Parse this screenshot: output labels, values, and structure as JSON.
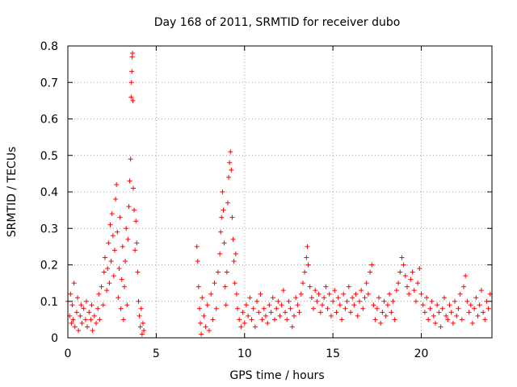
{
  "chart_data": {
    "type": "scatter",
    "title": "Day 168 of 2011, SRMTID for receiver dubo",
    "xlabel": "GPS time / hours",
    "ylabel": "SRMTID / TECUs",
    "xlim": [
      0,
      24
    ],
    "ylim": [
      0,
      0.8
    ],
    "xticks": [
      0,
      5,
      10,
      15,
      20
    ],
    "xtick_labels": [
      "0",
      "5",
      "10",
      "15",
      "20"
    ],
    "yticks": [
      0,
      0.1,
      0.2,
      0.3,
      0.4,
      0.5,
      0.6,
      0.7,
      0.8
    ],
    "ytick_labels": [
      "0",
      "0.1",
      "0.2",
      "0.3",
      "0.4",
      "0.5",
      "0.6",
      "0.7",
      "0.8"
    ],
    "grid": true,
    "marker": "+",
    "color": "#ff0000",
    "series": [
      {
        "name": "SRMTID",
        "points": [
          [
            0.0,
            0.1
          ],
          [
            0.1,
            0.06
          ],
          [
            0.15,
            0.12
          ],
          [
            0.2,
            0.04
          ],
          [
            0.25,
            0.09
          ],
          [
            0.3,
            0.05
          ],
          [
            0.35,
            0.15
          ],
          [
            0.4,
            0.03
          ],
          [
            0.5,
            0.07
          ],
          [
            0.55,
            0.11
          ],
          [
            0.6,
            0.02
          ],
          [
            0.7,
            0.06
          ],
          [
            0.75,
            0.09
          ],
          [
            0.8,
            0.04
          ],
          [
            0.9,
            0.08
          ],
          [
            1.0,
            0.05
          ],
          [
            1.05,
            0.1
          ],
          [
            1.1,
            0.03
          ],
          [
            1.2,
            0.07
          ],
          [
            1.3,
            0.05
          ],
          [
            1.35,
            0.09
          ],
          [
            1.4,
            0.02
          ],
          [
            1.5,
            0.06
          ],
          [
            1.6,
            0.04
          ],
          [
            1.7,
            0.08
          ],
          [
            1.75,
            0.12
          ],
          [
            1.8,
            0.05
          ],
          [
            1.9,
            0.14
          ],
          [
            2.0,
            0.09
          ],
          [
            2.05,
            0.18
          ],
          [
            2.1,
            0.22
          ],
          [
            2.2,
            0.13
          ],
          [
            2.25,
            0.19
          ],
          [
            2.3,
            0.26
          ],
          [
            2.35,
            0.15
          ],
          [
            2.4,
            0.31
          ],
          [
            2.45,
            0.21
          ],
          [
            2.5,
            0.34
          ],
          [
            2.55,
            0.28
          ],
          [
            2.6,
            0.17
          ],
          [
            2.65,
            0.24
          ],
          [
            2.7,
            0.38
          ],
          [
            2.75,
            0.42
          ],
          [
            2.8,
            0.29
          ],
          [
            2.85,
            0.11
          ],
          [
            2.9,
            0.19
          ],
          [
            2.95,
            0.33
          ],
          [
            3.0,
            0.08
          ],
          [
            3.05,
            0.16
          ],
          [
            3.1,
            0.25
          ],
          [
            3.15,
            0.05
          ],
          [
            3.2,
            0.14
          ],
          [
            3.25,
            0.21
          ],
          [
            3.3,
            0.3
          ],
          [
            3.35,
            0.09
          ],
          [
            3.4,
            0.27
          ],
          [
            3.45,
            0.36
          ],
          [
            3.5,
            0.43
          ],
          [
            3.55,
            0.49
          ],
          [
            3.58,
            0.66
          ],
          [
            3.6,
            0.7
          ],
          [
            3.62,
            0.73
          ],
          [
            3.64,
            0.77
          ],
          [
            3.66,
            0.78
          ],
          [
            3.68,
            0.65
          ],
          [
            3.7,
            0.41
          ],
          [
            3.75,
            0.35
          ],
          [
            3.8,
            0.24
          ],
          [
            3.85,
            0.32
          ],
          [
            3.9,
            0.26
          ],
          [
            3.95,
            0.18
          ],
          [
            4.0,
            0.1
          ],
          [
            4.05,
            0.06
          ],
          [
            4.1,
            0.03
          ],
          [
            4.15,
            0.08
          ],
          [
            4.2,
            0.01
          ],
          [
            4.25,
            0.04
          ],
          [
            4.3,
            0.02
          ],
          [
            7.3,
            0.25
          ],
          [
            7.35,
            0.21
          ],
          [
            7.4,
            0.14
          ],
          [
            7.45,
            0.08
          ],
          [
            7.5,
            0.04
          ],
          [
            7.55,
            0.01
          ],
          [
            7.6,
            0.11
          ],
          [
            7.7,
            0.06
          ],
          [
            7.8,
            0.03
          ],
          [
            7.9,
            0.09
          ],
          [
            8.0,
            0.02
          ],
          [
            8.1,
            0.12
          ],
          [
            8.2,
            0.05
          ],
          [
            8.3,
            0.15
          ],
          [
            8.4,
            0.08
          ],
          [
            8.5,
            0.18
          ],
          [
            8.6,
            0.23
          ],
          [
            8.65,
            0.29
          ],
          [
            8.7,
            0.33
          ],
          [
            8.75,
            0.4
          ],
          [
            8.8,
            0.35
          ],
          [
            8.85,
            0.26
          ],
          [
            8.9,
            0.14
          ],
          [
            8.95,
            0.09
          ],
          [
            9.0,
            0.18
          ],
          [
            9.05,
            0.37
          ],
          [
            9.1,
            0.44
          ],
          [
            9.15,
            0.48
          ],
          [
            9.2,
            0.51
          ],
          [
            9.25,
            0.46
          ],
          [
            9.3,
            0.33
          ],
          [
            9.35,
            0.27
          ],
          [
            9.4,
            0.21
          ],
          [
            9.45,
            0.15
          ],
          [
            9.5,
            0.23
          ],
          [
            9.55,
            0.12
          ],
          [
            9.6,
            0.08
          ],
          [
            9.7,
            0.05
          ],
          [
            9.8,
            0.03
          ],
          [
            9.9,
            0.07
          ],
          [
            10.0,
            0.04
          ],
          [
            10.1,
            0.09
          ],
          [
            10.2,
            0.06
          ],
          [
            10.3,
            0.11
          ],
          [
            10.4,
            0.05
          ],
          [
            10.5,
            0.08
          ],
          [
            10.6,
            0.03
          ],
          [
            10.7,
            0.1
          ],
          [
            10.8,
            0.07
          ],
          [
            10.9,
            0.12
          ],
          [
            11.0,
            0.05
          ],
          [
            11.1,
            0.08
          ],
          [
            11.2,
            0.06
          ],
          [
            11.3,
            0.04
          ],
          [
            11.4,
            0.09
          ],
          [
            11.5,
            0.07
          ],
          [
            11.6,
            0.11
          ],
          [
            11.7,
            0.05
          ],
          [
            11.8,
            0.08
          ],
          [
            11.9,
            0.1
          ],
          [
            12.0,
            0.06
          ],
          [
            12.1,
            0.09
          ],
          [
            12.2,
            0.13
          ],
          [
            12.3,
            0.07
          ],
          [
            12.4,
            0.05
          ],
          [
            12.5,
            0.1
          ],
          [
            12.6,
            0.08
          ],
          [
            12.7,
            0.03
          ],
          [
            12.8,
            0.06
          ],
          [
            12.9,
            0.11
          ],
          [
            13.0,
            0.09
          ],
          [
            13.1,
            0.07
          ],
          [
            13.2,
            0.12
          ],
          [
            13.3,
            0.15
          ],
          [
            13.4,
            0.18
          ],
          [
            13.5,
            0.22
          ],
          [
            13.55,
            0.25
          ],
          [
            13.6,
            0.2
          ],
          [
            13.7,
            0.14
          ],
          [
            13.8,
            0.11
          ],
          [
            13.9,
            0.08
          ],
          [
            14.0,
            0.13
          ],
          [
            14.1,
            0.1
          ],
          [
            14.2,
            0.12
          ],
          [
            14.3,
            0.07
          ],
          [
            14.4,
            0.09
          ],
          [
            14.5,
            0.11
          ],
          [
            14.6,
            0.14
          ],
          [
            14.7,
            0.08
          ],
          [
            14.8,
            0.12
          ],
          [
            14.9,
            0.06
          ],
          [
            15.0,
            0.1
          ],
          [
            15.1,
            0.13
          ],
          [
            15.2,
            0.07
          ],
          [
            15.3,
            0.11
          ],
          [
            15.4,
            0.09
          ],
          [
            15.5,
            0.05
          ],
          [
            15.6,
            0.12
          ],
          [
            15.7,
            0.08
          ],
          [
            15.8,
            0.1
          ],
          [
            15.9,
            0.14
          ],
          [
            16.0,
            0.07
          ],
          [
            16.1,
            0.11
          ],
          [
            16.2,
            0.09
          ],
          [
            16.3,
            0.12
          ],
          [
            16.4,
            0.06
          ],
          [
            16.5,
            0.1
          ],
          [
            16.6,
            0.13
          ],
          [
            16.7,
            0.08
          ],
          [
            16.8,
            0.11
          ],
          [
            16.9,
            0.15
          ],
          [
            17.0,
            0.12
          ],
          [
            17.1,
            0.18
          ],
          [
            17.2,
            0.2
          ],
          [
            17.3,
            0.09
          ],
          [
            17.4,
            0.05
          ],
          [
            17.5,
            0.08
          ],
          [
            17.6,
            0.11
          ],
          [
            17.7,
            0.04
          ],
          [
            17.8,
            0.07
          ],
          [
            17.9,
            0.1
          ],
          [
            18.0,
            0.06
          ],
          [
            18.1,
            0.09
          ],
          [
            18.2,
            0.12
          ],
          [
            18.3,
            0.07
          ],
          [
            18.4,
            0.1
          ],
          [
            18.5,
            0.05
          ],
          [
            18.6,
            0.13
          ],
          [
            18.7,
            0.15
          ],
          [
            18.8,
            0.18
          ],
          [
            18.9,
            0.22
          ],
          [
            19.0,
            0.2
          ],
          [
            19.1,
            0.17
          ],
          [
            19.2,
            0.14
          ],
          [
            19.3,
            0.12
          ],
          [
            19.4,
            0.16
          ],
          [
            19.5,
            0.18
          ],
          [
            19.6,
            0.13
          ],
          [
            19.7,
            0.1
          ],
          [
            19.8,
            0.15
          ],
          [
            19.9,
            0.19
          ],
          [
            20.0,
            0.12
          ],
          [
            20.1,
            0.09
          ],
          [
            20.2,
            0.07
          ],
          [
            20.3,
            0.11
          ],
          [
            20.4,
            0.05
          ],
          [
            20.5,
            0.08
          ],
          [
            20.6,
            0.1
          ],
          [
            20.7,
            0.06
          ],
          [
            20.8,
            0.04
          ],
          [
            20.9,
            0.09
          ],
          [
            21.0,
            0.07
          ],
          [
            21.1,
            0.03
          ],
          [
            21.2,
            0.08
          ],
          [
            21.3,
            0.11
          ],
          [
            21.4,
            0.06
          ],
          [
            21.5,
            0.05
          ],
          [
            21.6,
            0.09
          ],
          [
            21.7,
            0.07
          ],
          [
            21.8,
            0.04
          ],
          [
            21.9,
            0.1
          ],
          [
            22.0,
            0.06
          ],
          [
            22.1,
            0.08
          ],
          [
            22.2,
            0.12
          ],
          [
            22.3,
            0.05
          ],
          [
            22.4,
            0.14
          ],
          [
            22.5,
            0.17
          ],
          [
            22.6,
            0.1
          ],
          [
            22.7,
            0.07
          ],
          [
            22.8,
            0.09
          ],
          [
            22.9,
            0.04
          ],
          [
            23.0,
            0.08
          ],
          [
            23.1,
            0.11
          ],
          [
            23.2,
            0.06
          ],
          [
            23.3,
            0.09
          ],
          [
            23.4,
            0.13
          ],
          [
            23.5,
            0.07
          ],
          [
            23.6,
            0.05
          ],
          [
            23.7,
            0.1
          ],
          [
            23.8,
            0.08
          ],
          [
            23.9,
            0.12
          ]
        ]
      }
    ]
  }
}
